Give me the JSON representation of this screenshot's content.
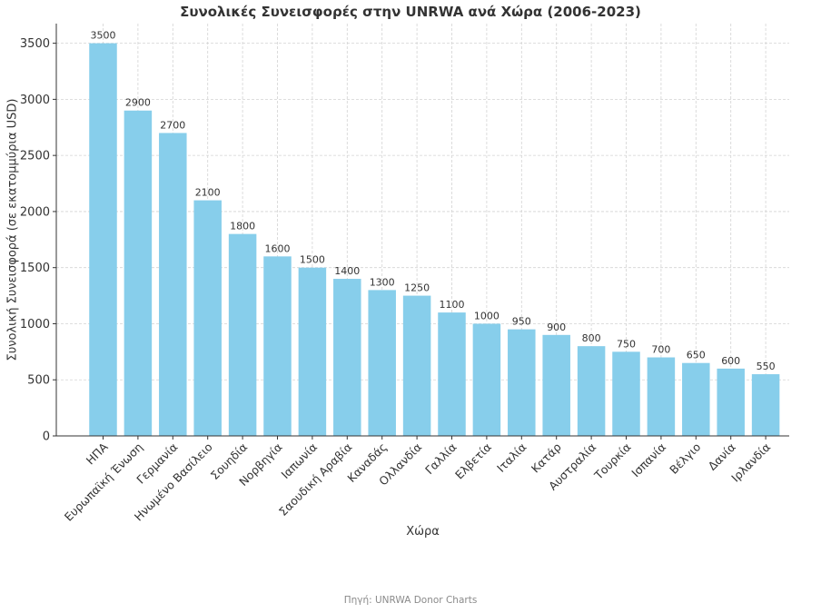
{
  "chart_data": {
    "type": "bar",
    "title": "Συνολικές Συνεισφορές στην UNRWA ανά Χώρα (2006-2023)",
    "xlabel": "Χώρα",
    "ylabel": "Συνολική Συνεισφορά (σε εκατομμύρια USD)",
    "categories": [
      "ΗΠΑ",
      "Ευρωπαϊκή Ένωση",
      "Γερμανία",
      "Ηνωμένο Βασίλειο",
      "Σουηδία",
      "Νορβηγία",
      "Ιαπωνία",
      "Σαουδική Αραβία",
      "Καναδάς",
      "Ολλανδία",
      "Γαλλία",
      "Ελβετία",
      "Ιταλία",
      "Κατάρ",
      "Αυστραλία",
      "Τουρκία",
      "Ισπανία",
      "Βέλγιο",
      "Δανία",
      "Ιρλανδία"
    ],
    "values": [
      3500,
      2900,
      2700,
      2100,
      1800,
      1600,
      1500,
      1400,
      1300,
      1250,
      1100,
      1000,
      950,
      900,
      800,
      750,
      700,
      650,
      600,
      550
    ],
    "ylim": [
      0,
      3675
    ],
    "yticks": [
      0,
      500,
      1000,
      1500,
      2000,
      2500,
      3000,
      3500
    ],
    "grid": true,
    "bar_color": "#87ceeb",
    "source": "Πηγή: UNRWA Donor Charts"
  }
}
